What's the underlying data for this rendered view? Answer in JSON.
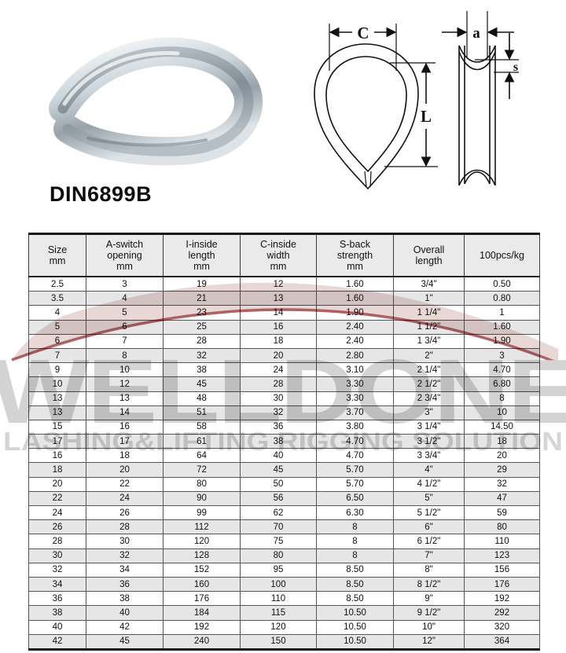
{
  "page": {
    "title": "DIN6899B"
  },
  "product_image": {
    "name": "galvanized-wire-rope-thimble-photo"
  },
  "diagram": {
    "labels": {
      "width": "C",
      "length": "L",
      "thickness": "a",
      "depth": "s"
    }
  },
  "watermark": {
    "brand": "WELLDONE",
    "tagline": "LASHING&LIFTING RIGGING SOLUTION",
    "accent_color": "#a2494e",
    "swoosh_fill": "#e8d5d4",
    "text_color": "#d3d3d3"
  },
  "table": {
    "columns": [
      [
        "Size",
        "mm"
      ],
      [
        "A-switch",
        "opening",
        "mm"
      ],
      [
        "I-inside",
        "length",
        "mm"
      ],
      [
        "C-inside",
        "width",
        "mm"
      ],
      [
        "S-back",
        "strength",
        "mm"
      ],
      [
        "Overall",
        "length"
      ],
      [
        "100pcs/kg"
      ]
    ],
    "rows": [
      [
        "2.5",
        "3",
        "19",
        "12",
        "1.60",
        "3/4\"",
        "0.50"
      ],
      [
        "3.5",
        "4",
        "21",
        "13",
        "1.60",
        "1\"",
        "0.80"
      ],
      [
        "4",
        "5",
        "23",
        "14",
        "1.90",
        "1 1/4\"",
        "1"
      ],
      [
        "5",
        "6",
        "25",
        "16",
        "2.40",
        "1 1/2\"",
        "1.60"
      ],
      [
        "6",
        "7",
        "28",
        "18",
        "2.40",
        "1 3/4\"",
        "1.90"
      ],
      [
        "7",
        "8",
        "32",
        "20",
        "2.80",
        "2\"",
        "3"
      ],
      [
        "9",
        "10",
        "38",
        "24",
        "3.10",
        "2 1/4\"",
        "4.70"
      ],
      [
        "10",
        "12",
        "45",
        "28",
        "3.30",
        "2 1/2\"",
        "6.80"
      ],
      [
        "13",
        "13",
        "48",
        "30",
        "3.30",
        "2 3/4\"",
        "8"
      ],
      [
        "13",
        "14",
        "51",
        "32",
        "3.70",
        "3\"",
        "10"
      ],
      [
        "15",
        "16",
        "58",
        "36",
        "3.80",
        "3 1/4\"",
        "14.50"
      ],
      [
        "17",
        "17",
        "61",
        "38",
        "4.70",
        "3 1/2\"",
        "18"
      ],
      [
        "16",
        "18",
        "64",
        "40",
        "4.70",
        "3 3/4\"",
        "20"
      ],
      [
        "18",
        "20",
        "72",
        "45",
        "5.70",
        "4\"",
        "29"
      ],
      [
        "20",
        "22",
        "80",
        "50",
        "5.70",
        "4 1/2\"",
        "32"
      ],
      [
        "22",
        "24",
        "90",
        "56",
        "6.50",
        "5\"",
        "47"
      ],
      [
        "24",
        "26",
        "99",
        "62",
        "6.30",
        "5 1/2\"",
        "59"
      ],
      [
        "26",
        "28",
        "112",
        "70",
        "8",
        "6\"",
        "80"
      ],
      [
        "28",
        "30",
        "120",
        "75",
        "8",
        "6 1/2\"",
        "110"
      ],
      [
        "30",
        "32",
        "128",
        "80",
        "8",
        "7\"",
        "123"
      ],
      [
        "32",
        "34",
        "152",
        "95",
        "8.50",
        "8\"",
        "156"
      ],
      [
        "34",
        "36",
        "160",
        "100",
        "8.50",
        "8 1/2\"",
        "176"
      ],
      [
        "36",
        "38",
        "176",
        "110",
        "8.50",
        "9\"",
        "192"
      ],
      [
        "38",
        "40",
        "184",
        "115",
        "10.50",
        "9 1/2\"",
        "292"
      ],
      [
        "40",
        "42",
        "192",
        "120",
        "10.50",
        "10\"",
        "320"
      ],
      [
        "42",
        "45",
        "240",
        "150",
        "10.50",
        "12\"",
        "364"
      ]
    ]
  }
}
